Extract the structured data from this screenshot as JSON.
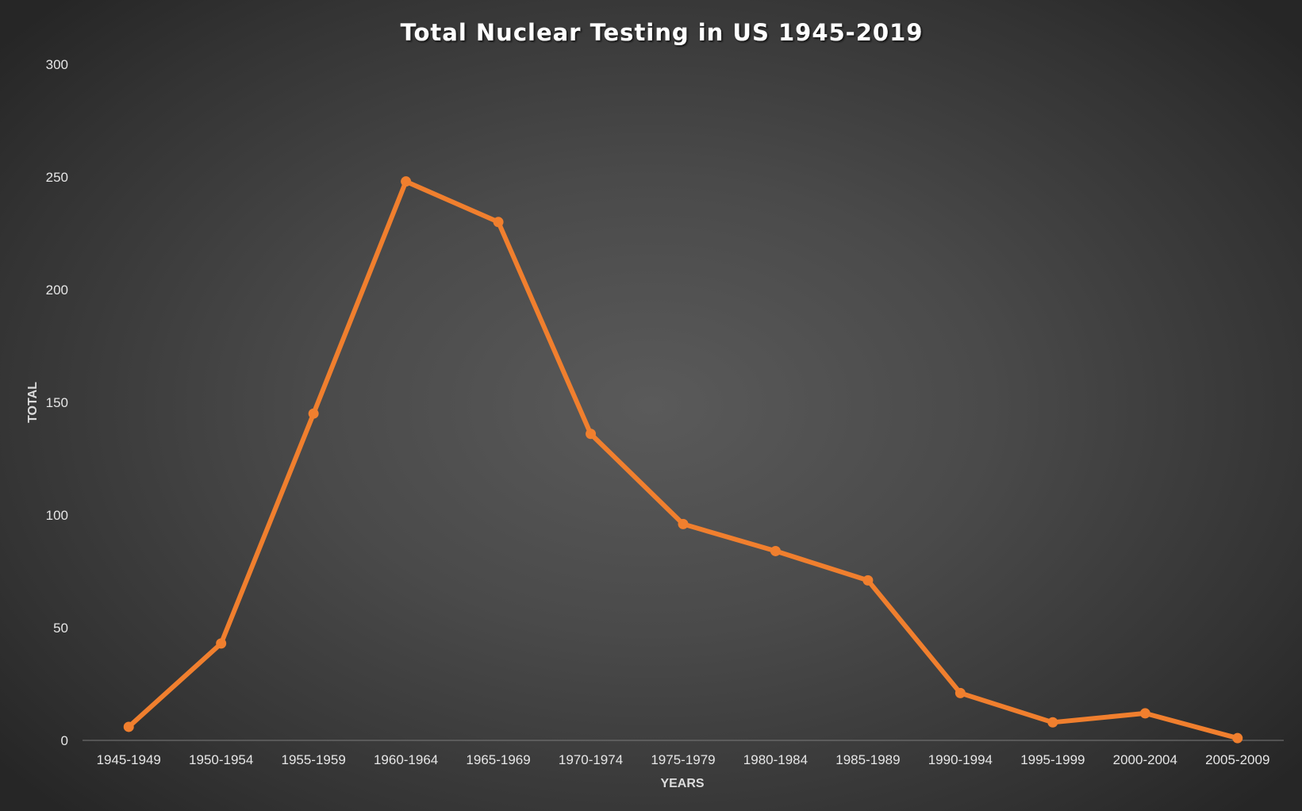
{
  "chart_data": {
    "type": "line",
    "title": "Total Nuclear Testing in US 1945-2019",
    "xlabel": "YEARS",
    "ylabel": "TOTAL",
    "ylim": [
      0,
      300
    ],
    "yticks": [
      0,
      50,
      100,
      150,
      200,
      250,
      300
    ],
    "categories": [
      "1945-1949",
      "1950-1954",
      "1955-1959",
      "1960-1964",
      "1965-1969",
      "1970-1974",
      "1975-1979",
      "1980-1984",
      "1985-1989",
      "1990-1994",
      "1995-1999",
      "2000-2004",
      "2005-2009"
    ],
    "series": [
      {
        "values": [
          6,
          43,
          145,
          248,
          230,
          136,
          96,
          84,
          71,
          21,
          8,
          12,
          1
        ],
        "color": "#f07f2e"
      }
    ],
    "grid": false,
    "legend": "none"
  }
}
